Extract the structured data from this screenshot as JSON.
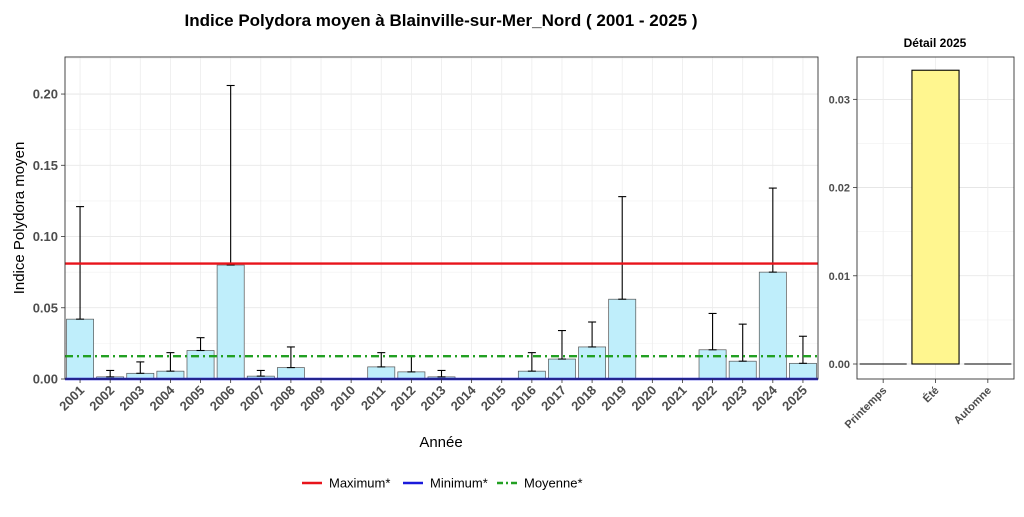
{
  "chart_data": [
    {
      "type": "bar",
      "title": "Indice Polydora moyen à Blainville-sur-Mer_Nord ( 2001 - 2025 )",
      "xlabel": "Année",
      "ylabel": "Indice Polydora moyen",
      "categories": [
        "2001",
        "2002",
        "2003",
        "2004",
        "2005",
        "2006",
        "2007",
        "2008",
        "2009",
        "2010",
        "2011",
        "2012",
        "2013",
        "2014",
        "2015",
        "2016",
        "2017",
        "2018",
        "2019",
        "2020",
        "2021",
        "2022",
        "2023",
        "2024",
        "2025"
      ],
      "values": [
        0.042,
        0.0015,
        0.004,
        0.0055,
        0.02,
        0.08,
        0.002,
        0.008,
        0,
        0,
        0.0085,
        0.005,
        0.0015,
        0,
        0,
        0.0055,
        0.014,
        0.0225,
        0.056,
        0,
        0,
        0.0205,
        0.0125,
        0.075,
        0.011
      ],
      "error_upper": [
        0.121,
        0.006,
        0.012,
        0.0185,
        0.029,
        0.206,
        0.006,
        0.0225,
        null,
        null,
        0.0185,
        0.016,
        0.006,
        null,
        null,
        0.0185,
        0.034,
        0.04,
        0.128,
        null,
        null,
        0.046,
        0.0385,
        0.134,
        0.03
      ],
      "ylim": [
        0,
        0.226
      ],
      "yticks": [
        "0.00",
        "0.05",
        "0.10",
        "0.15",
        "0.20"
      ],
      "ytick_values": [
        0,
        0.05,
        0.1,
        0.15,
        0.2
      ],
      "reference_lines": [
        {
          "name": "Maximum*",
          "value": 0.081,
          "color": "#e8141b",
          "style": "solid"
        },
        {
          "name": "Minimum*",
          "value": 0.0,
          "color": "#1a1adb",
          "style": "solid"
        },
        {
          "name": "Moyenne*",
          "value": 0.016,
          "color": "#22a022",
          "style": "dashdot"
        }
      ],
      "bar_color": "#bfeefb",
      "grid": true,
      "legend_position": "bottom"
    },
    {
      "type": "bar",
      "title": "Détail 2025",
      "categories": [
        "Printemps",
        "Été",
        "Automne"
      ],
      "values": [
        0,
        0.0333,
        0
      ],
      "ylim": [
        -0.0017,
        0.0348
      ],
      "yticks": [
        "0.00",
        "0.01",
        "0.02",
        "0.03"
      ],
      "ytick_values": [
        0,
        0.01,
        0.02,
        0.03
      ],
      "bar_color": "#fff68f",
      "grid": true
    }
  ]
}
